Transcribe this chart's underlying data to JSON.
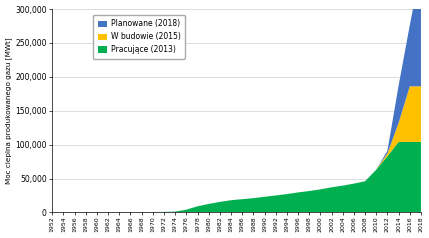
{
  "years": [
    1952,
    1954,
    1956,
    1958,
    1960,
    1962,
    1964,
    1966,
    1968,
    1970,
    1972,
    1974,
    1976,
    1978,
    1980,
    1982,
    1984,
    1986,
    1988,
    1990,
    1992,
    1994,
    1996,
    1998,
    2000,
    2002,
    2004,
    2006,
    2008,
    2010,
    2012,
    2014,
    2016,
    2018
  ],
  "working": [
    0,
    0,
    0,
    0,
    100,
    150,
    200,
    300,
    400,
    600,
    800,
    1200,
    4000,
    9000,
    12500,
    15500,
    18000,
    19500,
    21000,
    23000,
    25000,
    27000,
    29500,
    31500,
    34000,
    37000,
    39500,
    42500,
    46000,
    63000,
    83000,
    104000,
    104000,
    104000
  ],
  "under_construction": [
    0,
    0,
    0,
    0,
    0,
    0,
    0,
    0,
    0,
    0,
    0,
    0,
    0,
    0,
    0,
    0,
    0,
    0,
    0,
    0,
    0,
    0,
    0,
    0,
    0,
    0,
    0,
    0,
    0,
    0,
    4000,
    28000,
    82000,
    82000
  ],
  "planned": [
    0,
    0,
    0,
    0,
    0,
    0,
    0,
    0,
    0,
    0,
    0,
    0,
    0,
    0,
    0,
    0,
    0,
    0,
    0,
    0,
    0,
    0,
    0,
    0,
    0,
    0,
    0,
    0,
    0,
    0,
    4000,
    55000,
    90000,
    175000
  ],
  "working_color": "#00b050",
  "under_construction_color": "#ffc000",
  "planned_color": "#4472c4",
  "ylabel": "Moc cieplna produkowanego gazu [MWt]",
  "ylim": [
    0,
    300000
  ],
  "yticks": [
    0,
    50000,
    100000,
    150000,
    200000,
    250000,
    300000
  ],
  "ytick_labels": [
    "0",
    "50,000",
    "100,000",
    "150,000",
    "200,000",
    "250,000",
    "300,000"
  ],
  "legend_labels": [
    "Planowane (2018)",
    "W budowie (2015)",
    "Pracujące (2013)"
  ],
  "legend_colors": [
    "#4472c4",
    "#ffc000",
    "#00b050"
  ],
  "background_color": "#ffffff",
  "grid_color": "#d0d0d0",
  "figsize": [
    4.29,
    2.38
  ],
  "dpi": 100
}
